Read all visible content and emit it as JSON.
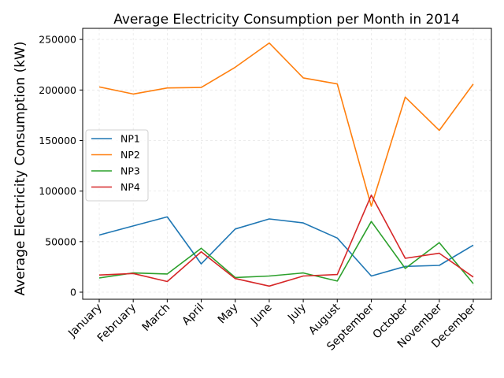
{
  "chart_data": {
    "type": "line",
    "title": "Average Electricity Consumption per Month in 2014",
    "xlabel": "",
    "ylabel": "Average Electricity Consumption (kW)",
    "categories": [
      "January",
      "February",
      "March",
      "April",
      "May",
      "June",
      "July",
      "August",
      "September",
      "October",
      "November",
      "December"
    ],
    "ylim": [
      -7000,
      261000
    ],
    "yticks": [
      0,
      50000,
      100000,
      150000,
      200000,
      250000
    ],
    "ytick_labels": [
      "0",
      "50000",
      "100000",
      "150000",
      "200000",
      "250000"
    ],
    "grid": true,
    "legend_position": "center-left",
    "series": [
      {
        "name": "NP1",
        "color": "#1f77b4",
        "values": [
          56500,
          65500,
          74500,
          28000,
          62500,
          72500,
          68500,
          53500,
          16000,
          25500,
          26500,
          46500
        ]
      },
      {
        "name": "NP2",
        "color": "#ff7f0e",
        "values": [
          203000,
          196000,
          202000,
          202500,
          222500,
          246500,
          212000,
          206000,
          85000,
          193000,
          160000,
          206000
        ]
      },
      {
        "name": "NP3",
        "color": "#2ca02c",
        "values": [
          14000,
          19000,
          18000,
          43500,
          14500,
          16000,
          19000,
          11000,
          70000,
          23500,
          49000,
          8500
        ]
      },
      {
        "name": "NP4",
        "color": "#d62728",
        "values": [
          17000,
          18500,
          10500,
          40000,
          13500,
          6000,
          16000,
          17500,
          96000,
          33500,
          38500,
          15000
        ]
      }
    ]
  }
}
